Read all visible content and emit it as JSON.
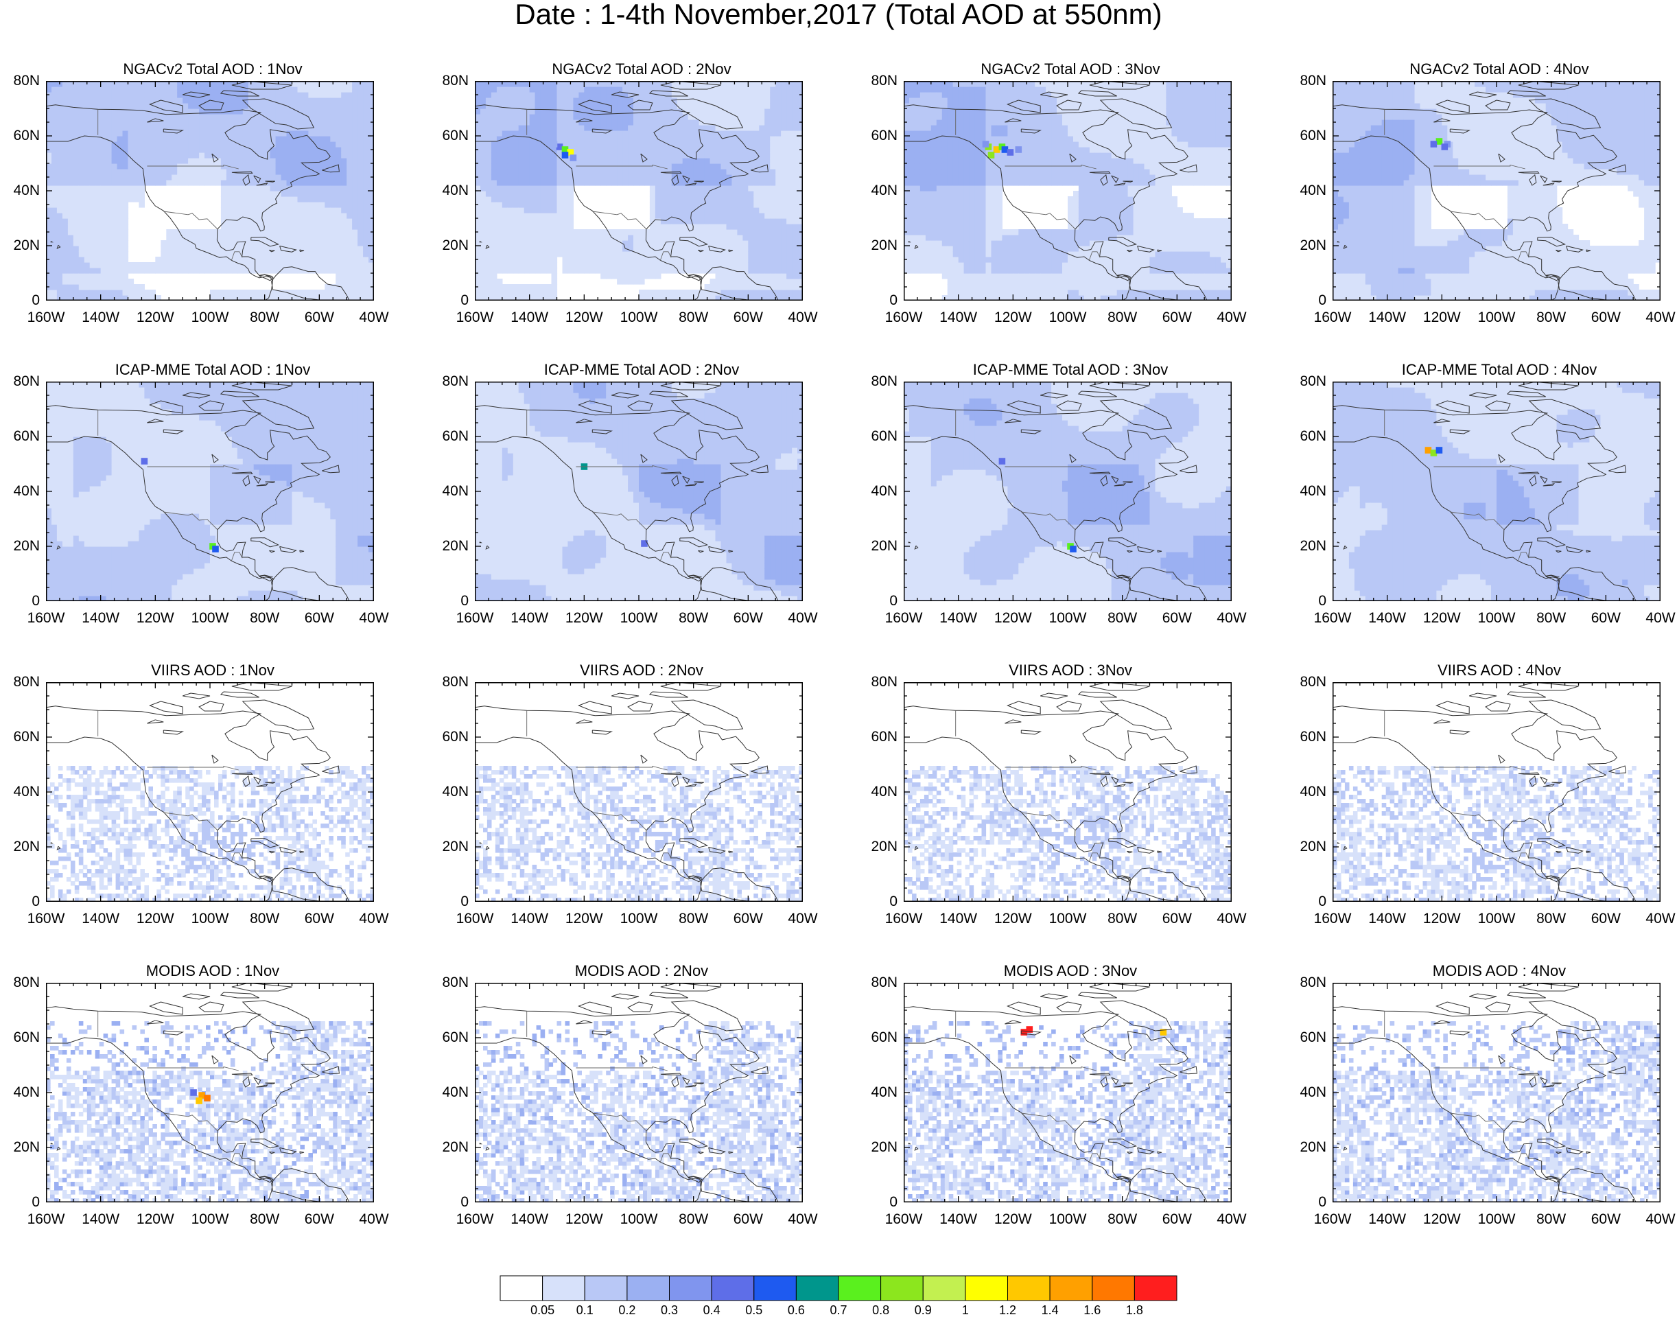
{
  "title": "Date : 1-4th November,2017 (Total AOD at 550nm)",
  "lat_ticks": [
    "80N",
    "60N",
    "40N",
    "20N",
    "0"
  ],
  "lon_ticks": [
    "160W",
    "140W",
    "120W",
    "100W",
    "80W",
    "60W",
    "40W"
  ],
  "rows": [
    {
      "product": "NGACv2 Total AOD",
      "kind": "model_ngac",
      "panels": [
        {
          "title": "NGACv2 Total AOD : 1Nov",
          "hotspot": null
        },
        {
          "title": "NGACv2 Total AOD : 2Nov",
          "hotspot": "fire_strong"
        },
        {
          "title": "NGACv2 Total AOD : 3Nov",
          "hotspot": "fire_strongest"
        },
        {
          "title": "NGACv2 Total AOD : 4Nov",
          "hotspot": "fire_medium"
        }
      ]
    },
    {
      "product": "ICAP-MME Total AOD",
      "kind": "model_icap",
      "panels": [
        {
          "title": "ICAP-MME Total AOD : 1Nov",
          "hotspot": "mexico"
        },
        {
          "title": "ICAP-MME Total AOD : 2Nov",
          "hotspot": "pnw"
        },
        {
          "title": "ICAP-MME Total AOD : 3Nov",
          "hotspot": "mexico"
        },
        {
          "title": "ICAP-MME Total AOD : 4Nov",
          "hotspot": "pnw_orange"
        }
      ]
    },
    {
      "product": "VIIRS AOD",
      "kind": "sat_viirs",
      "panels": [
        {
          "title": "VIIRS AOD : 1Nov",
          "hotspot": null
        },
        {
          "title": "VIIRS AOD : 2Nov",
          "hotspot": null
        },
        {
          "title": "VIIRS AOD : 3Nov",
          "hotspot": null
        },
        {
          "title": "VIIRS AOD : 4Nov",
          "hotspot": null
        }
      ]
    },
    {
      "product": "MODIS AOD",
      "kind": "sat_modis",
      "panels": [
        {
          "title": "MODIS AOD : 1Nov",
          "hotspot": "plains_orange"
        },
        {
          "title": "MODIS AOD : 2Nov",
          "hotspot": null
        },
        {
          "title": "MODIS AOD : 3Nov",
          "hotspot": "red_north"
        },
        {
          "title": "MODIS AOD : 4Nov",
          "hotspot": null
        }
      ]
    }
  ],
  "colorbar": {
    "colors": [
      "#ffffff",
      "#d7e1fa",
      "#b9c8f6",
      "#9bb0f2",
      "#8095ee",
      "#5e6ee8",
      "#1e5af0",
      "#00968c",
      "#5af01e",
      "#8ce61e",
      "#c3f050",
      "#ffff00",
      "#ffc800",
      "#ffa000",
      "#ff7800",
      "#ff1e1e"
    ],
    "labels": [
      "0.05",
      "0.1",
      "0.2",
      "0.3",
      "0.4",
      "0.5",
      "0.6",
      "0.7",
      "0.8",
      "0.9",
      "1",
      "1.2",
      "1.4",
      "1.6",
      "1.8"
    ]
  }
}
